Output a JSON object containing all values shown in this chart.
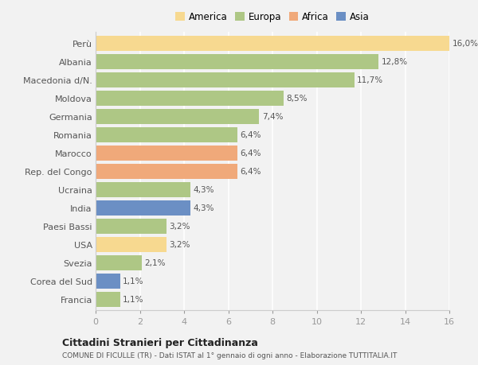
{
  "categories": [
    "Francia",
    "Corea del Sud",
    "Svezia",
    "USA",
    "Paesi Bassi",
    "India",
    "Ucraina",
    "Rep. del Congo",
    "Marocco",
    "Romania",
    "Germania",
    "Moldova",
    "Macedonia d/N.",
    "Albania",
    "Perù"
  ],
  "values": [
    1.1,
    1.1,
    2.1,
    3.2,
    3.2,
    4.3,
    4.3,
    6.4,
    6.4,
    6.4,
    7.4,
    8.5,
    11.7,
    12.8,
    16.0
  ],
  "colors": [
    "#aec785",
    "#6b8fc4",
    "#aec785",
    "#f7d990",
    "#aec785",
    "#6b8fc4",
    "#aec785",
    "#f0a97a",
    "#f0a97a",
    "#aec785",
    "#aec785",
    "#aec785",
    "#aec785",
    "#aec785",
    "#f7d990"
  ],
  "labels": [
    "1,1%",
    "1,1%",
    "2,1%",
    "3,2%",
    "3,2%",
    "4,3%",
    "4,3%",
    "6,4%",
    "6,4%",
    "6,4%",
    "7,4%",
    "8,5%",
    "11,7%",
    "12,8%",
    "16,0%"
  ],
  "legend": [
    {
      "label": "America",
      "color": "#f7d990"
    },
    {
      "label": "Europa",
      "color": "#aec785"
    },
    {
      "label": "Africa",
      "color": "#f0a97a"
    },
    {
      "label": "Asia",
      "color": "#6b8fc4"
    }
  ],
  "title": "Cittadini Stranieri per Cittadinanza",
  "subtitle": "COMUNE DI FICULLE (TR) - Dati ISTAT al 1° gennaio di ogni anno - Elaborazione TUTTITALIA.IT",
  "xlim": [
    0,
    16
  ],
  "xticks": [
    0,
    2,
    4,
    6,
    8,
    10,
    12,
    14,
    16
  ],
  "background_color": "#f2f2f2",
  "grid_color": "#ffffff",
  "bar_height": 0.82
}
